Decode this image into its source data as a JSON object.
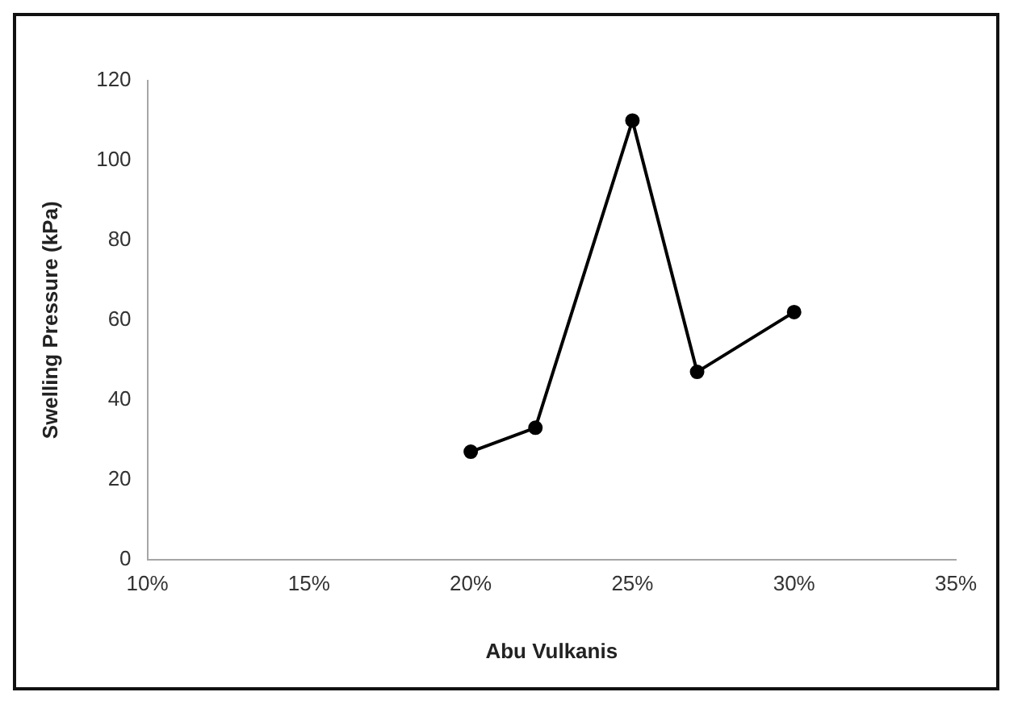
{
  "chart_data": {
    "type": "line",
    "xlabel": "Abu Vulkanis",
    "ylabel": "Swelling Pressure (kPa)",
    "x": [
      20,
      22,
      25,
      27,
      30
    ],
    "series": [
      {
        "color": "#000000",
        "values": [
          27,
          33,
          110,
          47,
          62
        ]
      }
    ],
    "xlim": [
      10,
      35
    ],
    "xticks": [
      {
        "value": 10,
        "label": "10%"
      },
      {
        "value": 15,
        "label": "15%"
      },
      {
        "value": 20,
        "label": "20%"
      },
      {
        "value": 25,
        "label": "25%"
      },
      {
        "value": 30,
        "label": "30%"
      },
      {
        "value": 35,
        "label": "35%"
      }
    ],
    "ylim": [
      0,
      120
    ],
    "yticks": [
      0,
      20,
      40,
      60,
      80,
      100,
      120
    ],
    "grid": false,
    "legend": false,
    "marker": "circle",
    "line_style": "solid"
  }
}
